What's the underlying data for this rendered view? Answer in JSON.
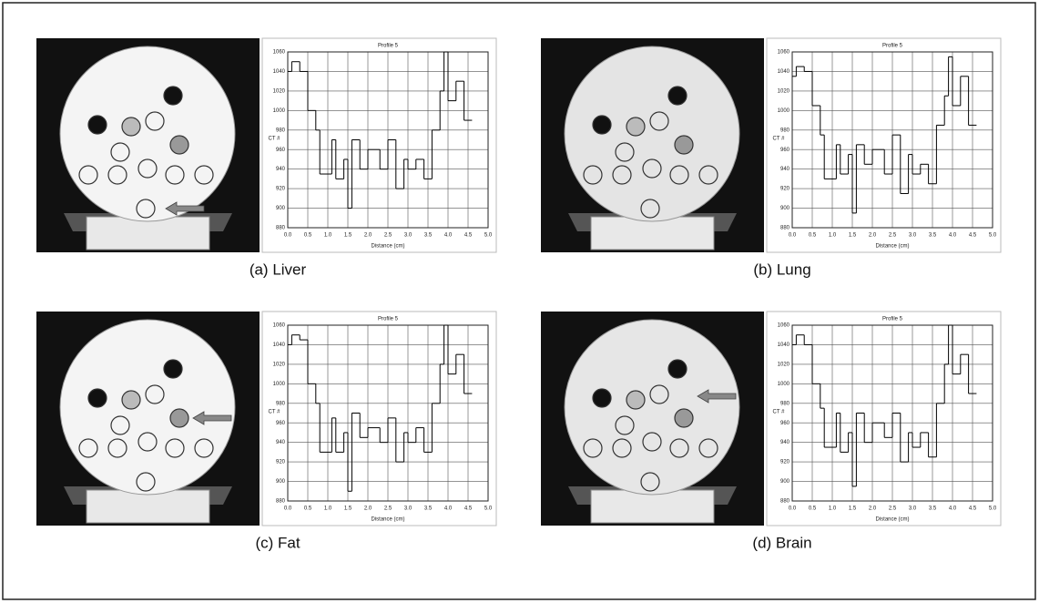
{
  "chart_data": [
    {
      "type": "line",
      "caption": "(a) Liver",
      "title": "Profile 5",
      "x_label": "Distance (cm)",
      "y_label": "CT #",
      "color": "#000000",
      "grid": true,
      "x": [
        0.0,
        0.1,
        0.3,
        0.5,
        0.7,
        0.8,
        1.1,
        1.2,
        1.4,
        1.5,
        1.6,
        1.8,
        2.0,
        2.3,
        2.5,
        2.7,
        2.9,
        3.0,
        3.2,
        3.4,
        3.6,
        3.8,
        3.9,
        4.0,
        4.2,
        4.4
      ],
      "values": [
        1040,
        1050,
        1040,
        1000,
        980,
        935,
        970,
        930,
        950,
        900,
        970,
        940,
        960,
        940,
        970,
        920,
        950,
        940,
        950,
        930,
        980,
        1020,
        1060,
        1010,
        1030,
        990
      ],
      "xlim": [
        0,
        5
      ],
      "ylim": [
        880,
        1060
      ],
      "xticks": [
        {
          "value": 0,
          "label": "0.0"
        },
        0.5,
        {
          "value": 1,
          "label": "1.0"
        },
        1.5,
        {
          "value": 2,
          "label": "2.0"
        },
        2.5,
        {
          "value": 3,
          "label": "3.0"
        },
        3.5,
        {
          "value": 4,
          "label": "4.0"
        },
        4.5,
        {
          "value": 5,
          "label": "5.0"
        }
      ],
      "yticks": [
        880,
        900,
        920,
        940,
        960,
        980,
        1000,
        1020,
        1040,
        1060
      ]
    },
    {
      "type": "line",
      "caption": "(b) Lung",
      "title": "Profile 5",
      "x_label": "Distance (cm)",
      "y_label": "CT #",
      "color": "#000000",
      "grid": true,
      "x": [
        0.0,
        0.1,
        0.3,
        0.5,
        0.7,
        0.8,
        1.1,
        1.2,
        1.4,
        1.5,
        1.6,
        1.8,
        2.0,
        2.3,
        2.5,
        2.7,
        2.9,
        3.0,
        3.2,
        3.4,
        3.6,
        3.8,
        3.9,
        4.0,
        4.2,
        4.4
      ],
      "values": [
        1035,
        1045,
        1040,
        1005,
        975,
        930,
        965,
        935,
        955,
        895,
        965,
        945,
        960,
        935,
        975,
        915,
        955,
        935,
        945,
        925,
        985,
        1015,
        1055,
        1005,
        1035,
        985
      ],
      "xlim": [
        0,
        5
      ],
      "ylim": [
        880,
        1060
      ],
      "xticks": [
        {
          "value": 0,
          "label": "0.0"
        },
        0.5,
        {
          "value": 1,
          "label": "1.0"
        },
        1.5,
        {
          "value": 2,
          "label": "2.0"
        },
        2.5,
        {
          "value": 3,
          "label": "3.0"
        },
        3.5,
        {
          "value": 4,
          "label": "4.0"
        },
        4.5,
        {
          "value": 5,
          "label": "5.0"
        }
      ],
      "yticks": [
        880,
        900,
        920,
        940,
        960,
        980,
        1000,
        1020,
        1040,
        1060
      ]
    },
    {
      "type": "line",
      "caption": "(c) Fat",
      "title": "Profile 5",
      "x_label": "Distance (cm)",
      "y_label": "CT #",
      "color": "#000000",
      "grid": true,
      "x": [
        0.0,
        0.1,
        0.3,
        0.5,
        0.7,
        0.8,
        1.1,
        1.2,
        1.4,
        1.5,
        1.6,
        1.8,
        2.0,
        2.3,
        2.5,
        2.7,
        2.9,
        3.0,
        3.2,
        3.4,
        3.6,
        3.8,
        3.9,
        4.0,
        4.2,
        4.4
      ],
      "values": [
        1040,
        1050,
        1045,
        1000,
        980,
        930,
        965,
        930,
        950,
        890,
        970,
        945,
        955,
        940,
        965,
        920,
        950,
        940,
        955,
        930,
        980,
        1020,
        1060,
        1010,
        1030,
        990
      ],
      "xlim": [
        0,
        5
      ],
      "ylim": [
        880,
        1060
      ],
      "xticks": [
        {
          "value": 0,
          "label": "0.0"
        },
        0.5,
        {
          "value": 1,
          "label": "1.0"
        },
        1.5,
        {
          "value": 2,
          "label": "2.0"
        },
        2.5,
        {
          "value": 3,
          "label": "3.0"
        },
        3.5,
        {
          "value": 4,
          "label": "4.0"
        },
        4.5,
        {
          "value": 5,
          "label": "5.0"
        }
      ],
      "yticks": [
        880,
        900,
        920,
        940,
        960,
        980,
        1000,
        1020,
        1040,
        1060
      ]
    },
    {
      "type": "line",
      "caption": "(d) Brain",
      "title": "Profile 5",
      "x_label": "Distance (cm)",
      "y_label": "CT #",
      "color": "#000000",
      "grid": true,
      "x": [
        0.0,
        0.1,
        0.3,
        0.5,
        0.7,
        0.8,
        1.1,
        1.2,
        1.4,
        1.5,
        1.6,
        1.8,
        2.0,
        2.3,
        2.5,
        2.7,
        2.9,
        3.0,
        3.2,
        3.4,
        3.6,
        3.8,
        3.9,
        4.0,
        4.2,
        4.4
      ],
      "values": [
        1040,
        1050,
        1040,
        1000,
        975,
        935,
        970,
        930,
        950,
        895,
        970,
        940,
        960,
        945,
        970,
        920,
        950,
        935,
        950,
        925,
        980,
        1020,
        1060,
        1010,
        1030,
        990
      ],
      "xlim": [
        0,
        5
      ],
      "ylim": [
        880,
        1060
      ],
      "xticks": [
        {
          "value": 0,
          "label": "0.0"
        },
        0.5,
        {
          "value": 1,
          "label": "1.0"
        },
        1.5,
        {
          "value": 2,
          "label": "2.0"
        },
        2.5,
        {
          "value": 3,
          "label": "3.0"
        },
        3.5,
        {
          "value": 4,
          "label": "4.0"
        },
        4.5,
        {
          "value": 5,
          "label": "5.0"
        }
      ],
      "yticks": [
        880,
        900,
        920,
        940,
        960,
        980,
        1000,
        1020,
        1040,
        1060
      ]
    }
  ]
}
